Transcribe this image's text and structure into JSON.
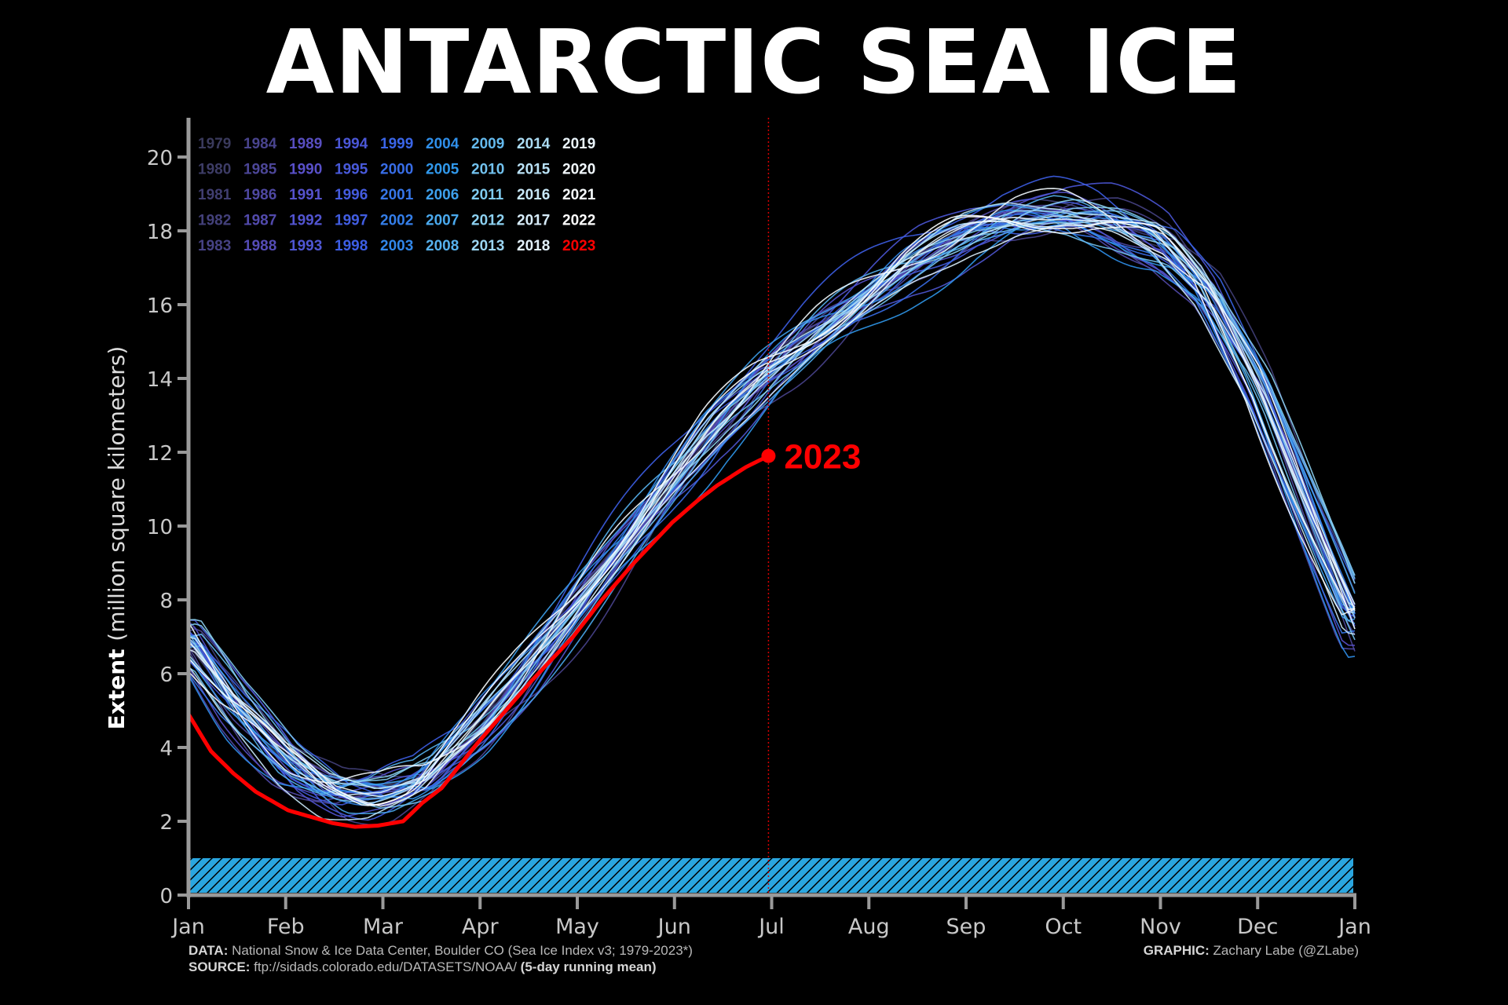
{
  "title": "ANTARCTIC SEA ICE",
  "chart_data": {
    "type": "line",
    "ylabel_bold": "Extent",
    "ylabel_rest": "(million square kilometers)",
    "ylim": [
      0,
      21
    ],
    "yticks": [
      0,
      2,
      4,
      6,
      8,
      10,
      12,
      14,
      16,
      18,
      20
    ],
    "months": [
      "Jan",
      "Feb",
      "Mar",
      "Apr",
      "May",
      "Jun",
      "Jul",
      "Aug",
      "Sep",
      "Oct",
      "Nov",
      "Dec",
      "Jan"
    ],
    "grid": false,
    "legend_placement": "top-left",
    "legend_years": [
      1979,
      1980,
      1981,
      1982,
      1983,
      1984,
      1985,
      1986,
      1987,
      1988,
      1989,
      1990,
      1991,
      1992,
      1993,
      1994,
      1995,
      1996,
      1997,
      1998,
      1999,
      2000,
      2001,
      2002,
      2003,
      2004,
      2005,
      2006,
      2007,
      2008,
      2009,
      2010,
      2011,
      2012,
      2013,
      2014,
      2015,
      2016,
      2017,
      2018,
      2019,
      2020,
      2021,
      2022,
      2023
    ],
    "highlight_label": "2023",
    "highlight_color": "#ff0000",
    "current_day_marker": "Jun 28",
    "climatology_mean": {
      "day_of_year": [
        1,
        15,
        32,
        46,
        60,
        74,
        91,
        105,
        121,
        135,
        152,
        166,
        182,
        196,
        213,
        227,
        244,
        258,
        274,
        288,
        305,
        319,
        335,
        349,
        365
      ],
      "extent": [
        7.0,
        5.3,
        3.7,
        2.9,
        2.8,
        3.2,
        4.6,
        6.0,
        7.8,
        9.4,
        11.3,
        12.8,
        14.2,
        15.2,
        16.3,
        17.2,
        18.0,
        18.4,
        18.5,
        18.3,
        17.7,
        16.4,
        13.8,
        10.8,
        7.5
      ]
    },
    "series_2023": {
      "name": "2023",
      "day_of_year": [
        1,
        8,
        15,
        22,
        32,
        40,
        46,
        53,
        60,
        68,
        74,
        80,
        91,
        100,
        108,
        121,
        130,
        140,
        152,
        160,
        166,
        175,
        182
      ],
      "extent": [
        4.9,
        3.9,
        3.3,
        2.8,
        2.3,
        2.1,
        1.95,
        1.85,
        1.88,
        2.0,
        2.5,
        2.9,
        4.1,
        5.0,
        5.8,
        7.0,
        8.0,
        9.0,
        10.1,
        10.7,
        11.1,
        11.6,
        11.9
      ]
    },
    "hatched_band": [
      0,
      1
    ],
    "hatched_band_color": "#2aa6e0"
  },
  "footer": {
    "data_label": "DATA:",
    "data_text": "National Snow & Ice Data Center, Boulder CO (Sea Ice Index v3; 1979-2023*)",
    "source_label": "SOURCE:",
    "source_text": "ftp://sidads.colorado.edu/DATASETS/NOAA/",
    "source_note": "(5-day running mean)",
    "graphic_label": "GRAPHIC:",
    "graphic_text": "Zachary Labe (@ZLabe)"
  }
}
